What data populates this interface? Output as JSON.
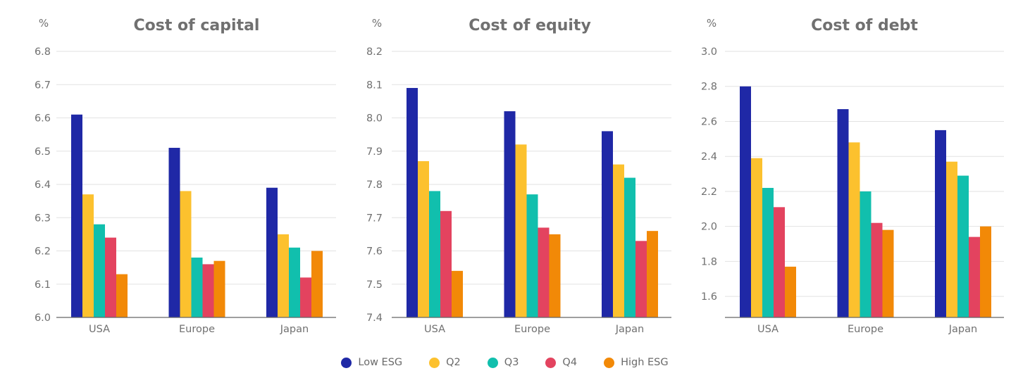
{
  "legend": [
    {
      "name": "Low ESG",
      "color": "#1f28a6"
    },
    {
      "name": "Q2",
      "color": "#fcc12e"
    },
    {
      "name": "Q3",
      "color": "#11bfad"
    },
    {
      "name": "Q4",
      "color": "#e3435f"
    },
    {
      "name": "High ESG",
      "color": "#f28907"
    }
  ],
  "chart_data": [
    {
      "type": "bar",
      "title": "Cost of capital",
      "unit": "%",
      "categories": [
        "USA",
        "Europe",
        "Japan"
      ],
      "ylim": [
        6.0,
        6.8
      ],
      "yticks": [
        "6.0",
        "6.1",
        "6.2",
        "6.3",
        "6.4",
        "6.5",
        "6.6",
        "6.7",
        "6.8"
      ],
      "grid": true,
      "legend_position": "bottom",
      "series": [
        {
          "name": "Low ESG",
          "values": [
            6.61,
            6.51,
            6.39
          ]
        },
        {
          "name": "Q2",
          "values": [
            6.37,
            6.38,
            6.25
          ]
        },
        {
          "name": "Q3",
          "values": [
            6.28,
            6.18,
            6.21
          ]
        },
        {
          "name": "Q4",
          "values": [
            6.24,
            6.16,
            6.12
          ]
        },
        {
          "name": "High ESG",
          "values": [
            6.13,
            6.17,
            6.2
          ]
        }
      ]
    },
    {
      "type": "bar",
      "title": "Cost of equity",
      "unit": "%",
      "categories": [
        "USA",
        "Europe",
        "Japan"
      ],
      "ylim": [
        7.4,
        8.2
      ],
      "yticks": [
        "7.4",
        "7.5",
        "7.6",
        "7.7",
        "7.8",
        "7.9",
        "8.0",
        "8.1",
        "8.2"
      ],
      "grid": true,
      "legend_position": "bottom",
      "series": [
        {
          "name": "Low ESG",
          "values": [
            8.09,
            8.02,
            7.96
          ]
        },
        {
          "name": "Q2",
          "values": [
            7.87,
            7.92,
            7.86
          ]
        },
        {
          "name": "Q3",
          "values": [
            7.78,
            7.77,
            7.82
          ]
        },
        {
          "name": "Q4",
          "values": [
            7.72,
            7.67,
            7.63
          ]
        },
        {
          "name": "High ESG",
          "values": [
            7.54,
            7.65,
            7.66
          ]
        }
      ]
    },
    {
      "type": "bar",
      "title": "Cost of debt",
      "unit": "%",
      "categories": [
        "USA",
        "Europe",
        "Japan"
      ],
      "ylim": [
        1.48,
        3.0
      ],
      "yticks": [
        "1.6",
        "1.8",
        "2.0",
        "2.2",
        "2.4",
        "2.6",
        "2.8",
        "3.0"
      ],
      "grid": true,
      "legend_position": "bottom",
      "series": [
        {
          "name": "Low ESG",
          "values": [
            2.8,
            2.67,
            2.55
          ]
        },
        {
          "name": "Q2",
          "values": [
            2.39,
            2.48,
            2.37
          ]
        },
        {
          "name": "Q3",
          "values": [
            2.22,
            2.2,
            2.29
          ]
        },
        {
          "name": "Q4",
          "values": [
            2.11,
            2.02,
            1.94
          ]
        },
        {
          "name": "High ESG",
          "values": [
            1.77,
            1.98,
            2.0
          ]
        }
      ]
    }
  ]
}
